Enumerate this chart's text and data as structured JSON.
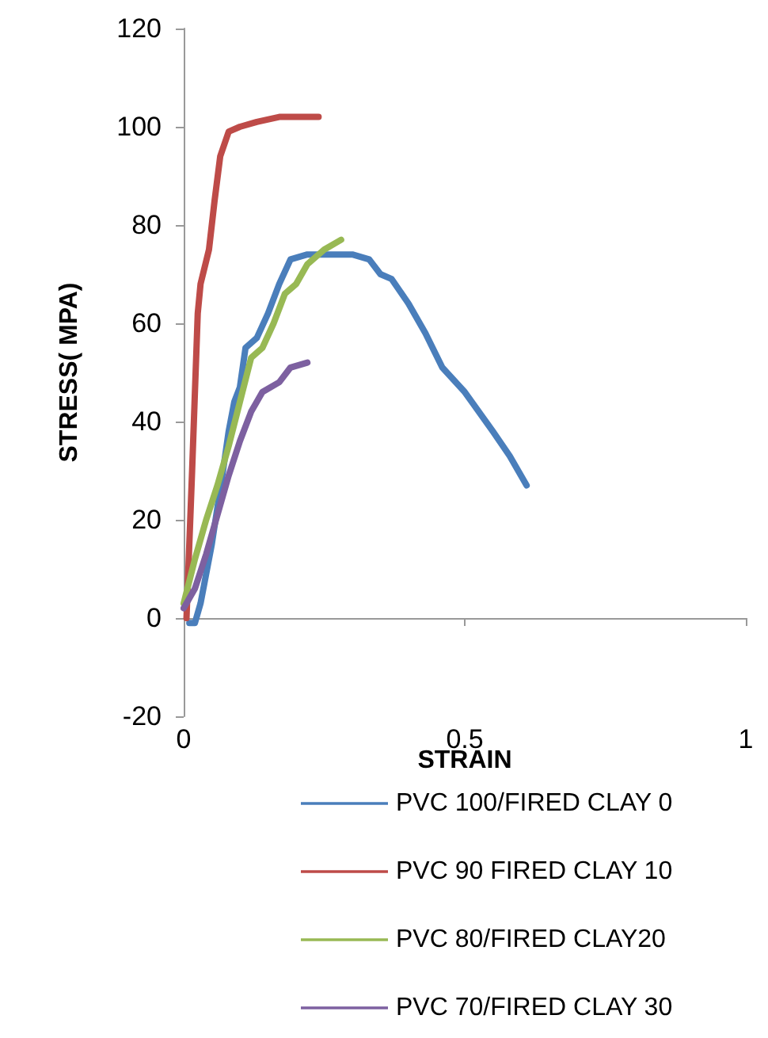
{
  "chart_data": {
    "type": "line",
    "xlabel": "STRAIN",
    "ylabel": "STRESS( MPA)",
    "xlim": [
      0,
      1
    ],
    "xticks": [
      0,
      0.5,
      1
    ],
    "ylim": [
      -20,
      120
    ],
    "yticks": [
      -20,
      0,
      20,
      40,
      60,
      80,
      100,
      120
    ],
    "legend": "bottom",
    "marker": "none",
    "line_style": "solid",
    "series": [
      {
        "name": "PVC 100/FIRED CLAY 0",
        "color": "#4a7ebb",
        "x": [
          0.01,
          0.02,
          0.03,
          0.05,
          0.07,
          0.08,
          0.09,
          0.1,
          0.11,
          0.13,
          0.15,
          0.17,
          0.19,
          0.22,
          0.3,
          0.33,
          0.35,
          0.37,
          0.4,
          0.43,
          0.46,
          0.5,
          0.55,
          0.58,
          0.61
        ],
        "values": [
          -1,
          -1,
          3,
          15,
          30,
          38,
          44,
          47,
          55,
          57,
          62,
          68,
          73,
          74,
          74,
          73,
          70,
          69,
          64,
          58,
          51,
          46,
          38,
          33,
          27
        ]
      },
      {
        "name": "PVC 90 FIRED CLAY 10",
        "color": "#be4b48",
        "x": [
          0.005,
          0.015,
          0.025,
          0.03,
          0.045,
          0.055,
          0.065,
          0.08,
          0.1,
          0.13,
          0.17,
          0.24
        ],
        "values": [
          0,
          30,
          62,
          68,
          75,
          85,
          94,
          99,
          100,
          101,
          102,
          102
        ]
      },
      {
        "name": "PVC 80/FIRED CLAY20",
        "color": "#98b954",
        "x": [
          0,
          0.02,
          0.04,
          0.06,
          0.08,
          0.1,
          0.12,
          0.14,
          0.16,
          0.18,
          0.2,
          0.22,
          0.25,
          0.28
        ],
        "values": [
          3,
          12,
          20,
          27,
          35,
          44,
          53,
          55,
          60,
          66,
          68,
          72,
          75,
          77
        ]
      },
      {
        "name": "PVC 70/FIRED CLAY 30",
        "color": "#7d60a0",
        "x": [
          0,
          0.02,
          0.04,
          0.06,
          0.08,
          0.1,
          0.12,
          0.14,
          0.17,
          0.19,
          0.22
        ],
        "values": [
          2,
          6,
          13,
          21,
          29,
          36,
          42,
          46,
          48,
          51,
          52
        ]
      }
    ]
  }
}
